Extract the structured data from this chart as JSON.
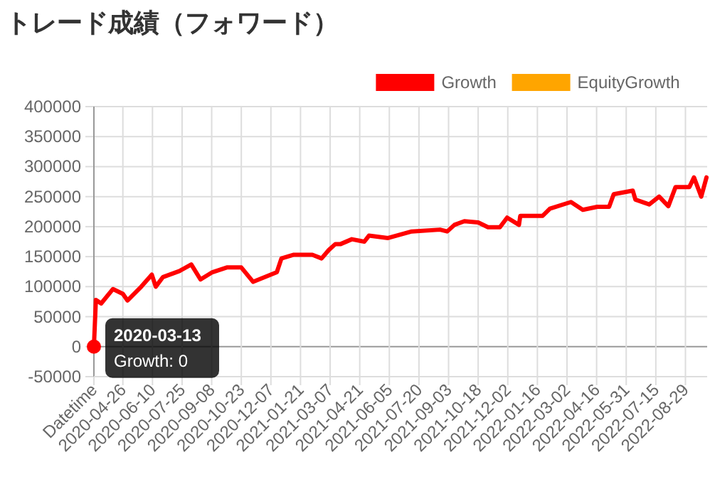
{
  "chart_data": {
    "type": "line",
    "title": "トレード成績（フォワード）",
    "x": [
      "2020-03-13",
      "2020-03-16",
      "2020-03-24",
      "2020-04-11",
      "2020-04-26",
      "2020-05-03",
      "2020-05-24",
      "2020-06-09",
      "2020-06-15",
      "2020-06-26",
      "2020-07-21",
      "2020-08-08",
      "2020-08-22",
      "2020-09-09",
      "2020-10-01",
      "2020-10-23",
      "2020-11-10",
      "2020-11-28",
      "2020-12-16",
      "2020-12-23",
      "2021-01-10",
      "2021-02-08",
      "2021-02-22",
      "2021-03-05",
      "2021-03-15",
      "2021-03-23",
      "2021-04-09",
      "2021-04-28",
      "2021-05-05",
      "2021-06-03",
      "2021-07-09",
      "2021-08-21",
      "2021-09-01",
      "2021-09-12",
      "2021-09-27",
      "2021-10-18",
      "2021-11-02",
      "2021-11-20",
      "2021-12-01",
      "2021-12-19",
      "2021-12-21",
      "2022-01-24",
      "2022-02-04",
      "2022-03-08",
      "2022-03-26",
      "2022-04-17",
      "2022-05-05",
      "2022-05-12",
      "2022-06-10",
      "2022-06-14",
      "2022-07-05",
      "2022-07-20",
      "2022-08-03",
      "2022-08-14",
      "2022-09-04",
      "2022-09-11",
      "2022-09-22",
      "2022-09-30"
    ],
    "series": [
      {
        "name": "Growth",
        "color": "#ff0000",
        "values": [
          0,
          78000,
          72000,
          96000,
          88000,
          77000,
          100000,
          120000,
          100000,
          116000,
          126000,
          137000,
          112000,
          124000,
          132000,
          132000,
          108000,
          116000,
          124000,
          147000,
          153000,
          153000,
          147000,
          161000,
          171000,
          171000,
          179000,
          175000,
          185000,
          181000,
          192000,
          195000,
          192000,
          203000,
          209000,
          207000,
          199000,
          199000,
          215000,
          203000,
          218000,
          218000,
          230000,
          241000,
          228000,
          233000,
          233000,
          254000,
          260000,
          245000,
          237000,
          250000,
          234000,
          266000,
          266000,
          282000,
          250000,
          282000
        ]
      },
      {
        "name": "EquityGrowth",
        "color": "#ffa500",
        "values": [
          null,
          null,
          null,
          null,
          null,
          null,
          null,
          null,
          null,
          null,
          null,
          null,
          null,
          null,
          null,
          null,
          null,
          null,
          null,
          null,
          null,
          null,
          null,
          null,
          null,
          null,
          null,
          null,
          null,
          null,
          null,
          null,
          null,
          null,
          null,
          null,
          null,
          null,
          null,
          null,
          null,
          null,
          null,
          null,
          null,
          null,
          null,
          null,
          null,
          null,
          null,
          null,
          null,
          null,
          null,
          null,
          null,
          null
        ]
      }
    ],
    "xlim": [
      "2020-03-13",
      "2022-10-01"
    ],
    "xticks": [
      {
        "value": "2020-03-13",
        "label": "Datetime"
      },
      {
        "value": "2020-04-26",
        "label": "2020-04-26"
      },
      {
        "value": "2020-06-10",
        "label": "2020-06-10"
      },
      {
        "value": "2020-07-25",
        "label": "2020-07-25"
      },
      {
        "value": "2020-09-08",
        "label": "2020-09-08"
      },
      {
        "value": "2020-10-23",
        "label": "2020-10-23"
      },
      {
        "value": "2020-12-07",
        "label": "2020-12-07"
      },
      {
        "value": "2021-01-21",
        "label": "2021-01-21"
      },
      {
        "value": "2021-03-07",
        "label": "2021-03-07"
      },
      {
        "value": "2021-04-21",
        "label": "2021-04-21"
      },
      {
        "value": "2021-06-05",
        "label": "2021-06-05"
      },
      {
        "value": "2021-07-20",
        "label": "2021-07-20"
      },
      {
        "value": "2021-09-03",
        "label": "2021-09-03"
      },
      {
        "value": "2021-10-18",
        "label": "2021-10-18"
      },
      {
        "value": "2021-12-02",
        "label": "2021-12-02"
      },
      {
        "value": "2022-01-16",
        "label": "2022-01-16"
      },
      {
        "value": "2022-03-02",
        "label": "2022-03-02"
      },
      {
        "value": "2022-04-16",
        "label": "2022-04-16"
      },
      {
        "value": "2022-05-31",
        "label": "2022-05-31"
      },
      {
        "value": "2022-07-15",
        "label": "2022-07-15"
      },
      {
        "value": "2022-08-29",
        "label": "2022-08-29"
      }
    ],
    "ylim": [
      -50000,
      400000
    ],
    "yticks": [
      -50000,
      0,
      50000,
      100000,
      150000,
      200000,
      250000,
      300000,
      350000,
      400000
    ],
    "annotations": [
      {
        "text": "2020-03-13\nGrowth: 0",
        "x": "2020-03-13",
        "y": 0
      }
    ],
    "grid": true,
    "legend": "top right",
    "marker": "none",
    "line_style": "solid"
  }
}
